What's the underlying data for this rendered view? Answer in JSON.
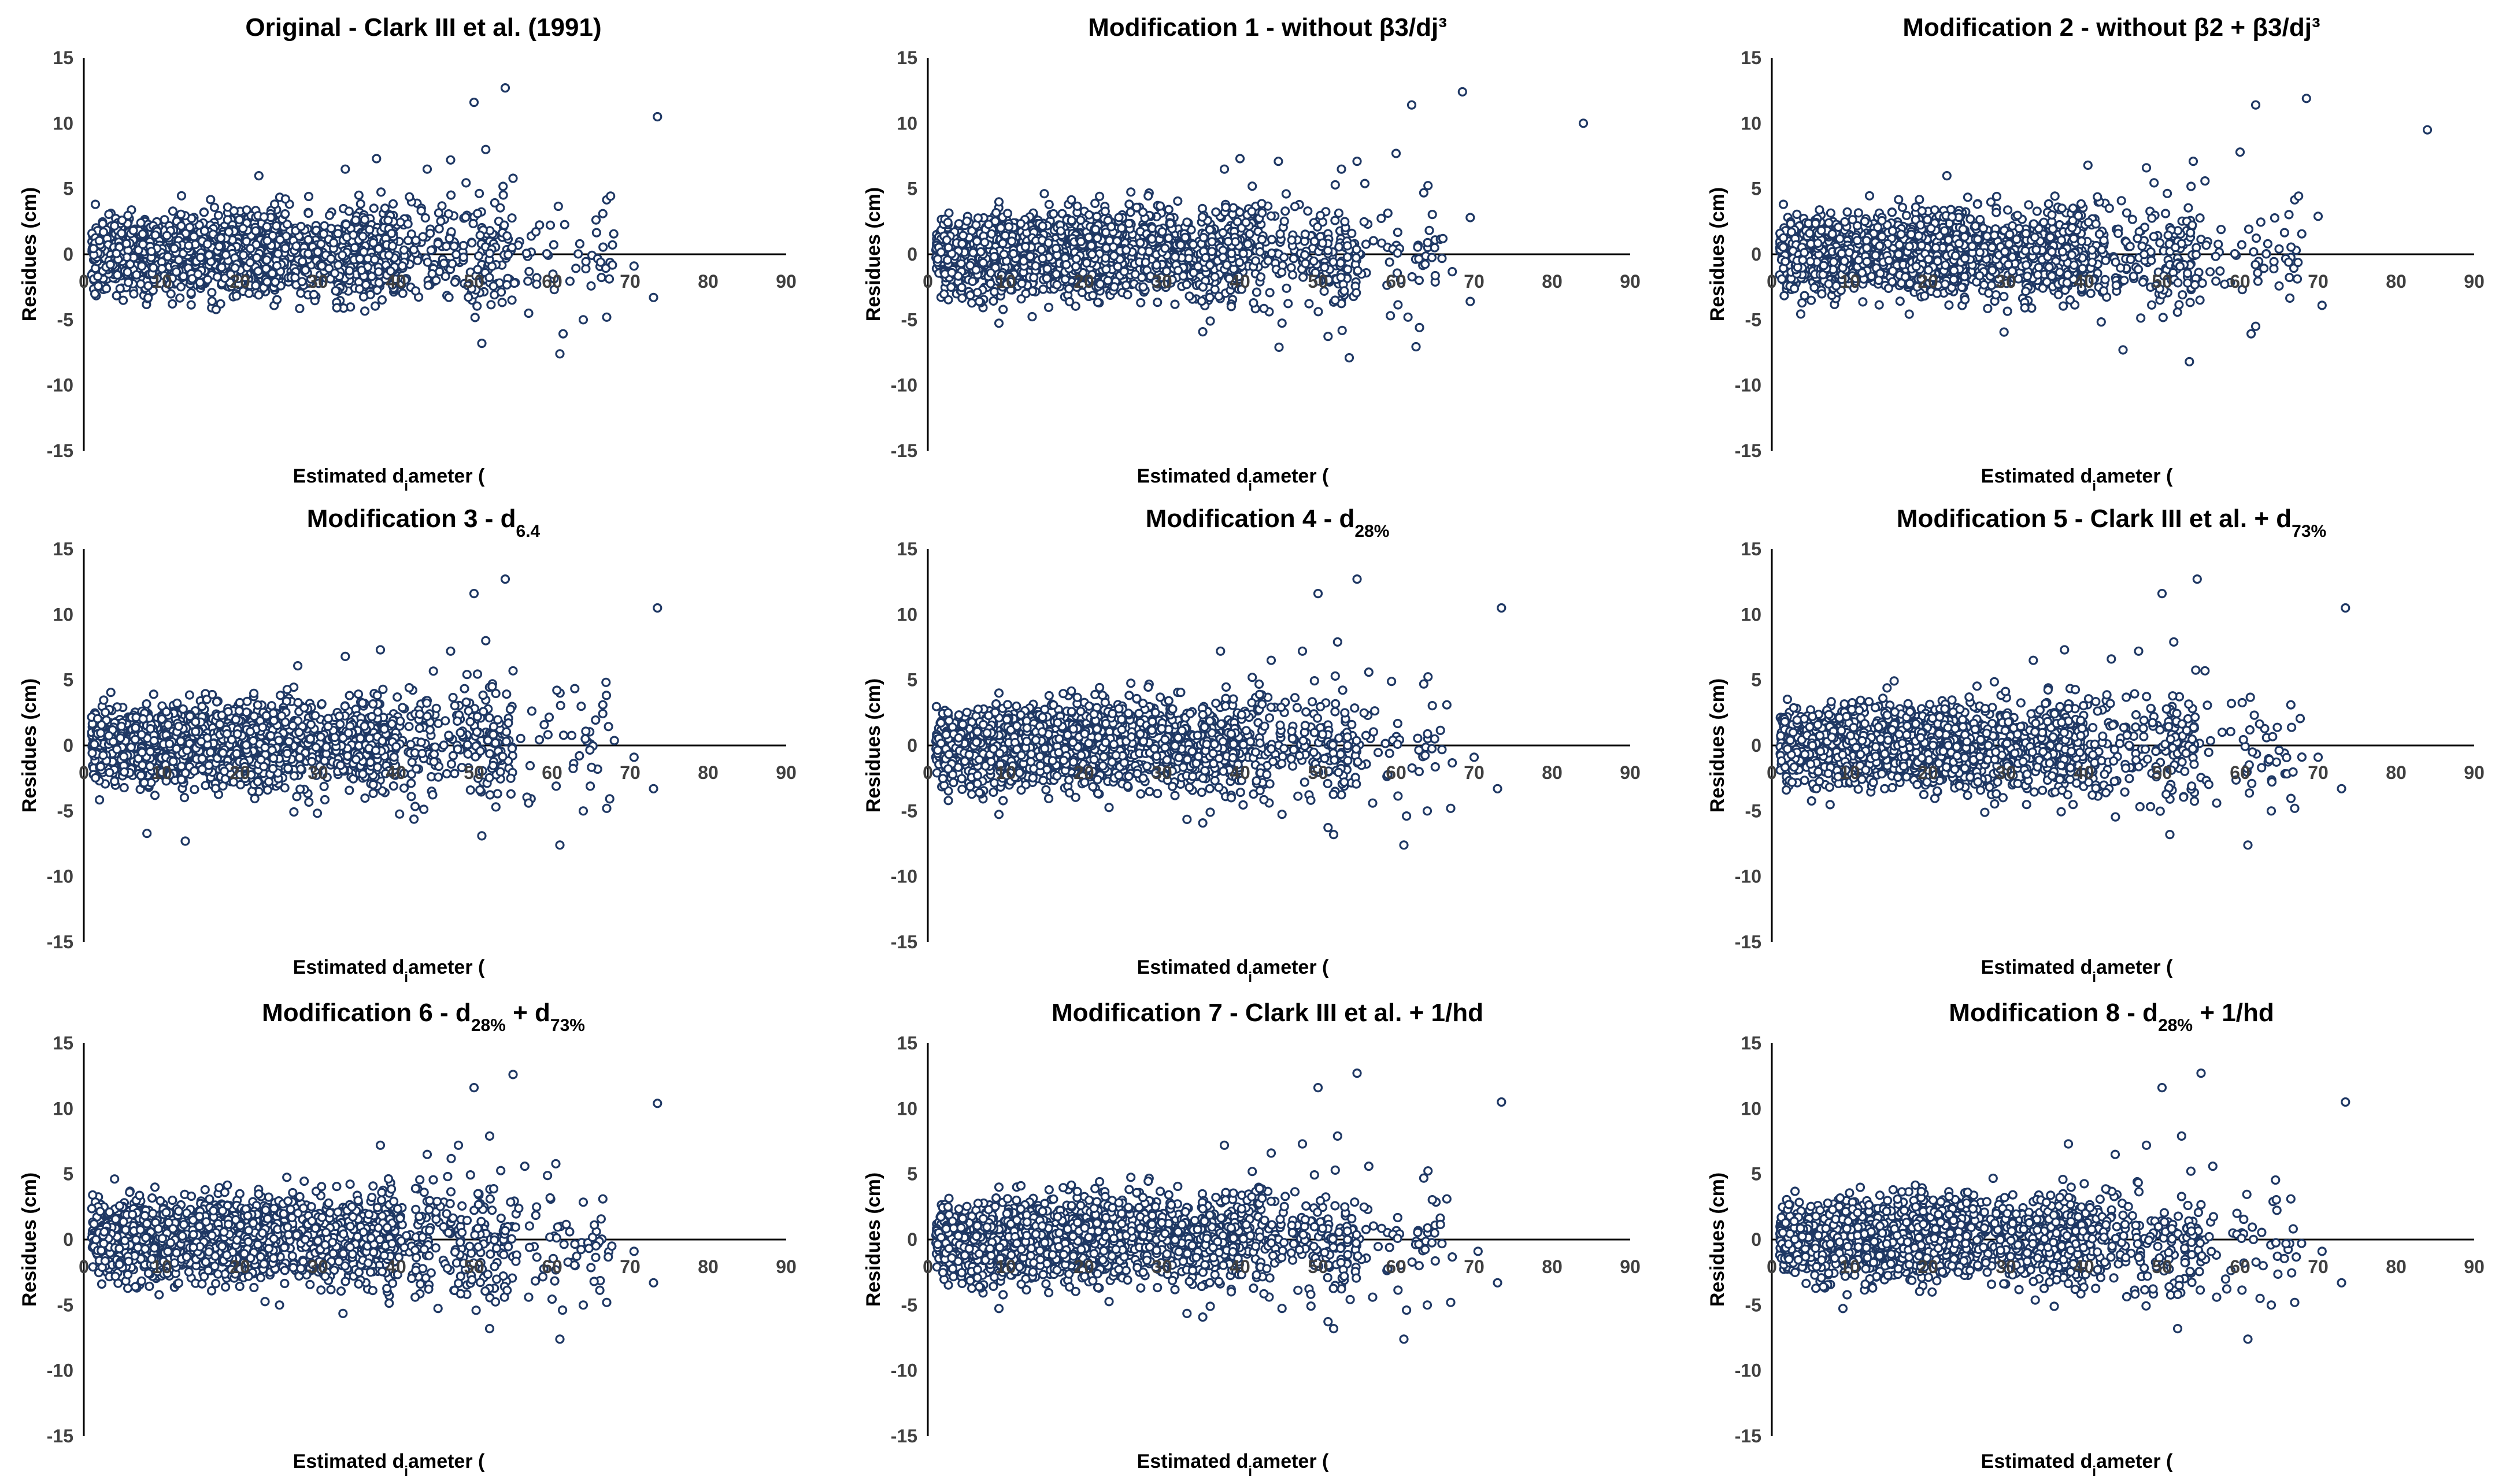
{
  "figure": {
    "marker_color": "#1f3864",
    "marker_fill": "#ffffff"
  },
  "chart_data": [
    {
      "type": "scatter",
      "title": {
        "text": "Original - Clark III et al. (1991)",
        "sub": "",
        "tail": ""
      },
      "xlabel": "Estimated diameter (di - cm)",
      "ylabel": "Residues (cm)",
      "xlim": [
        0,
        90
      ],
      "ylim": [
        -15,
        15
      ],
      "xticks": [
        0,
        10,
        20,
        30,
        40,
        50,
        60,
        70,
        80,
        90
      ],
      "yticks": [
        -15,
        -10,
        -5,
        0,
        5,
        10,
        15
      ],
      "grid": false,
      "outliers": [
        [
          73.5,
          10.5
        ],
        [
          54,
          12.7
        ],
        [
          50,
          11.6
        ],
        [
          51.5,
          8
        ],
        [
          47,
          7.2
        ],
        [
          44,
          6.5
        ],
        [
          37.5,
          7.3
        ],
        [
          33.5,
          6.5
        ],
        [
          55,
          5.8
        ],
        [
          61,
          -7.6
        ],
        [
          51,
          -6.8
        ],
        [
          64,
          -5
        ],
        [
          67,
          -4.8
        ],
        [
          66.5,
          3.1
        ],
        [
          73,
          -3.3
        ],
        [
          70.5,
          -0.9
        ],
        [
          57,
          -4.5
        ]
      ]
    },
    {
      "type": "scatter",
      "title": {
        "text": "Modification 1 - without β3/dj³",
        "sub": "",
        "tail": ""
      },
      "xlabel": "Estimated diameter (di - cm)",
      "ylabel": "Residues (cm)",
      "xlim": [
        0,
        90
      ],
      "ylim": [
        -15,
        15
      ],
      "xticks": [
        0,
        10,
        20,
        30,
        40,
        50,
        60,
        70,
        80,
        90
      ],
      "yticks": [
        -15,
        -10,
        -5,
        0,
        5,
        10,
        15
      ],
      "grid": false,
      "outliers": [
        [
          84,
          10
        ],
        [
          68.5,
          12.4
        ],
        [
          62,
          11.4
        ],
        [
          60,
          7.7
        ],
        [
          55,
          7.1
        ],
        [
          53,
          6.5
        ],
        [
          40,
          7.3
        ],
        [
          38,
          6.5
        ],
        [
          56,
          5.4
        ],
        [
          54,
          -7.9
        ],
        [
          45,
          -7.1
        ],
        [
          63,
          -5.6
        ],
        [
          69.5,
          -3.6
        ],
        [
          69.5,
          2.8
        ],
        [
          66,
          1.2
        ]
      ]
    },
    {
      "type": "scatter",
      "title": {
        "text": "Modification 2 - without β2 + β3/dj³",
        "sub": "",
        "tail": ""
      },
      "xlabel": "Estimated diameter (di - cm)",
      "ylabel": "Residues (cm)",
      "xlim": [
        0,
        90
      ],
      "ylim": [
        -15,
        15
      ],
      "xticks": [
        0,
        10,
        20,
        30,
        40,
        50,
        60,
        70,
        80,
        90
      ],
      "yticks": [
        -15,
        -10,
        -5,
        0,
        5,
        10,
        15
      ],
      "grid": false,
      "outliers": [
        [
          84,
          9.5
        ],
        [
          68.5,
          11.9
        ],
        [
          62,
          11.4
        ],
        [
          60,
          7.8
        ],
        [
          54,
          7.1
        ],
        [
          48,
          6.6
        ],
        [
          40.5,
          6.8
        ],
        [
          55.5,
          5.6
        ],
        [
          53.5,
          -8.2
        ],
        [
          45,
          -7.3
        ],
        [
          62,
          -5.5
        ],
        [
          70.5,
          -3.9
        ],
        [
          70,
          2.9
        ],
        [
          65,
          0.4
        ]
      ]
    },
    {
      "type": "scatter",
      "title": {
        "text": "Modification 3 - d",
        "sub": "6.4",
        "tail": ""
      },
      "xlabel": "Estimated diameter (di - cm)",
      "ylabel": "Residues (cm)",
      "xlim": [
        0,
        90
      ],
      "ylim": [
        -15,
        15
      ],
      "xticks": [
        0,
        10,
        20,
        30,
        40,
        50,
        60,
        70,
        80,
        90
      ],
      "yticks": [
        -15,
        -10,
        -5,
        0,
        5,
        10,
        15
      ],
      "grid": false,
      "outliers": [
        [
          73.5,
          10.5
        ],
        [
          54,
          12.7
        ],
        [
          50,
          11.6
        ],
        [
          51.5,
          8
        ],
        [
          47,
          7.2
        ],
        [
          38,
          7.3
        ],
        [
          33.5,
          6.8
        ],
        [
          55,
          5.7
        ],
        [
          61,
          -7.6
        ],
        [
          51,
          -6.9
        ],
        [
          64,
          -5
        ],
        [
          67,
          -4.8
        ],
        [
          66.5,
          3.1
        ],
        [
          73,
          -3.3
        ],
        [
          70.5,
          -0.9
        ],
        [
          13,
          -7.3
        ],
        [
          57,
          -4.4
        ]
      ]
    },
    {
      "type": "scatter",
      "title": {
        "text": "Modification 4 - d",
        "sub": "28%",
        "tail": ""
      },
      "xlabel": "Estimated diameter (di - cm)",
      "ylabel": "Residues (cm)",
      "xlim": [
        0,
        90
      ],
      "ylim": [
        -15,
        15
      ],
      "xticks": [
        0,
        10,
        20,
        30,
        40,
        50,
        60,
        70,
        80,
        90
      ],
      "yticks": [
        -15,
        -10,
        -5,
        0,
        5,
        10,
        15
      ],
      "grid": false,
      "outliers": [
        [
          73.5,
          10.5
        ],
        [
          55,
          12.7
        ],
        [
          50,
          11.6
        ],
        [
          52.5,
          7.9
        ],
        [
          48,
          7.2
        ],
        [
          44,
          6.5
        ],
        [
          37.5,
          7.2
        ],
        [
          56.5,
          5.6
        ],
        [
          61,
          -7.6
        ],
        [
          52,
          -6.8
        ],
        [
          64,
          -5
        ],
        [
          67,
          -4.8
        ],
        [
          66.5,
          3.1
        ],
        [
          73,
          -3.3
        ],
        [
          70,
          -0.9
        ],
        [
          57,
          -4.4
        ]
      ]
    },
    {
      "type": "scatter",
      "title": {
        "text": "Modification 5 - Clark III et al. + d",
        "sub": "73%",
        "tail": ""
      },
      "xlabel": "Estimated diameter (di - cm)",
      "ylabel": "Residues (cm)",
      "xlim": [
        0,
        90
      ],
      "ylim": [
        -15,
        15
      ],
      "xticks": [
        0,
        10,
        20,
        30,
        40,
        50,
        60,
        70,
        80,
        90
      ],
      "yticks": [
        -15,
        -10,
        -5,
        0,
        5,
        10,
        15
      ],
      "grid": false,
      "outliers": [
        [
          73.5,
          10.5
        ],
        [
          54.5,
          12.7
        ],
        [
          50,
          11.6
        ],
        [
          51.5,
          7.9
        ],
        [
          47,
          7.2
        ],
        [
          43.5,
          6.6
        ],
        [
          37.5,
          7.3
        ],
        [
          33.5,
          6.5
        ],
        [
          55.5,
          5.7
        ],
        [
          61,
          -7.6
        ],
        [
          51,
          -6.8
        ],
        [
          64,
          -5
        ],
        [
          67,
          -4.8
        ],
        [
          66.5,
          3.1
        ],
        [
          73,
          -3.3
        ],
        [
          70,
          -0.9
        ],
        [
          57,
          -4.4
        ]
      ]
    },
    {
      "type": "scatter",
      "title": {
        "text": "Modification 6 - d",
        "sub": "28%",
        "tail": " + d",
        "sub2": "73%"
      },
      "xlabel": "Estimated diameter (di - cm)",
      "ylabel": "Residues (cm)",
      "xlim": [
        0,
        90
      ],
      "ylim": [
        -15,
        15
      ],
      "xticks": [
        0,
        10,
        20,
        30,
        40,
        50,
        60,
        70,
        80,
        90
      ],
      "yticks": [
        -15,
        -10,
        -5,
        0,
        5,
        10,
        15
      ],
      "grid": false,
      "outliers": [
        [
          73.5,
          10.4
        ],
        [
          55,
          12.6
        ],
        [
          50,
          11.6
        ],
        [
          52,
          7.9
        ],
        [
          48,
          7.2
        ],
        [
          44,
          6.5
        ],
        [
          38,
          7.2
        ],
        [
          56.5,
          5.6
        ],
        [
          61,
          -7.6
        ],
        [
          52,
          -6.8
        ],
        [
          64,
          -5
        ],
        [
          67,
          -4.8
        ],
        [
          66.5,
          3.1
        ],
        [
          73,
          -3.3
        ],
        [
          70.5,
          -0.9
        ],
        [
          57,
          -4.4
        ]
      ]
    },
    {
      "type": "scatter",
      "title": {
        "text": "Modification 7 - Clark III et al. + 1/hd",
        "sub": "",
        "tail": ""
      },
      "xlabel": "Estimated diameter (di - cm)",
      "ylabel": "Residues (cm)",
      "xlim": [
        0,
        90
      ],
      "ylim": [
        -15,
        15
      ],
      "xticks": [
        0,
        10,
        20,
        30,
        40,
        50,
        60,
        70,
        80,
        90
      ],
      "yticks": [
        -15,
        -10,
        -5,
        0,
        5,
        10,
        15
      ],
      "grid": false,
      "outliers": [
        [
          73.5,
          10.5
        ],
        [
          55,
          12.7
        ],
        [
          50,
          11.6
        ],
        [
          52.5,
          7.9
        ],
        [
          48,
          7.3
        ],
        [
          44,
          6.6
        ],
        [
          38,
          7.2
        ],
        [
          56.5,
          5.6
        ],
        [
          61,
          -7.6
        ],
        [
          52,
          -6.8
        ],
        [
          64,
          -5
        ],
        [
          67,
          -4.8
        ],
        [
          66.5,
          3.1
        ],
        [
          73,
          -3.3
        ],
        [
          70.5,
          -0.9
        ],
        [
          57,
          -4.4
        ]
      ]
    },
    {
      "type": "scatter",
      "title": {
        "text": "Modification 8 - d",
        "sub": "28%",
        "tail": " + 1/hd"
      },
      "xlabel": "Estimated diameter (di - cm)",
      "ylabel": "Residues (cm)",
      "xlim": [
        0,
        90
      ],
      "ylim": [
        -15,
        15
      ],
      "xticks": [
        0,
        10,
        20,
        30,
        40,
        50,
        60,
        70,
        80,
        90
      ],
      "yticks": [
        -15,
        -10,
        -5,
        0,
        5,
        10,
        15
      ],
      "grid": false,
      "outliers": [
        [
          73.5,
          10.5
        ],
        [
          55,
          12.7
        ],
        [
          50,
          11.6
        ],
        [
          52.5,
          7.9
        ],
        [
          48,
          7.2
        ],
        [
          44,
          6.5
        ],
        [
          38,
          7.3
        ],
        [
          56.5,
          5.6
        ],
        [
          61,
          -7.6
        ],
        [
          52,
          -6.8
        ],
        [
          64,
          -5
        ],
        [
          67,
          -4.8
        ],
        [
          66.5,
          3.1
        ],
        [
          73,
          -3.3
        ],
        [
          70.5,
          -0.9
        ],
        [
          57,
          -4.4
        ]
      ]
    }
  ]
}
